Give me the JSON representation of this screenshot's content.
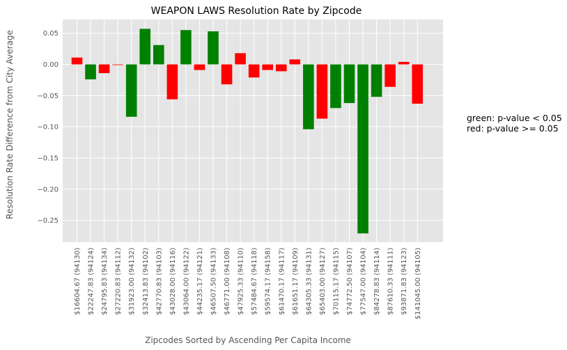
{
  "chart_data": {
    "type": "bar",
    "title": "WEAPON LAWS Resolution Rate by Zipcode",
    "xlabel": "Zipcodes Sorted by Ascending Per Capita Income",
    "ylabel": "Resolution Rate Difference from City Average",
    "ylim": [
      -0.285,
      0.072
    ],
    "yticks": [
      0.05,
      0.0,
      -0.05,
      -0.1,
      -0.15,
      -0.2,
      -0.25
    ],
    "ytick_labels": [
      "0.05",
      "0.00",
      "−0.05",
      "−0.10",
      "−0.15",
      "−0.20",
      "−0.25"
    ],
    "grid": true,
    "categories": [
      "$16604.67 (94130)",
      "$22247.83 (94124)",
      "$24795.83 (94134)",
      "$27220.83 (94112)",
      "$31923.00 (94132)",
      "$32413.83 (94102)",
      "$42770.83 (94103)",
      "$43028.00 (94116)",
      "$43064.00 (94122)",
      "$44235.17 (94121)",
      "$46507.50 (94133)",
      "$46771.00 (94108)",
      "$47925.33 (94110)",
      "$57484.67 (94118)",
      "$59574.17 (94158)",
      "$61470.17 (94117)",
      "$61651.17 (94109)",
      "$64305.33 (94131)",
      "$65403.00 (94127)",
      "$70115.17 (94115)",
      "$74772.50 (94107)",
      "$77547.00 (94104)",
      "$84278.83 (94114)",
      "$87610.33 (94111)",
      "$93871.83 (94123)",
      "$141045.00 (94105)"
    ],
    "values": [
      0.011,
      -0.024,
      -0.014,
      -0.001,
      -0.084,
      0.057,
      0.031,
      -0.056,
      0.055,
      -0.009,
      0.053,
      -0.032,
      0.018,
      -0.021,
      -0.009,
      -0.011,
      0.008,
      -0.104,
      -0.087,
      -0.07,
      -0.062,
      -0.271,
      -0.052,
      -0.036,
      0.004,
      -0.063
    ],
    "significant": [
      false,
      true,
      false,
      false,
      true,
      true,
      true,
      false,
      true,
      false,
      true,
      false,
      false,
      false,
      false,
      false,
      false,
      true,
      false,
      true,
      true,
      true,
      true,
      false,
      false,
      false
    ],
    "colors": {
      "significant": "#008000",
      "not_significant": "#ff0000",
      "plot_background": "#e5e5e5",
      "grid": "#ffffff"
    },
    "legend_text": [
      "green: p-value < 0.05",
      "red: p-value >= 0.05"
    ],
    "legend_position": "right"
  }
}
